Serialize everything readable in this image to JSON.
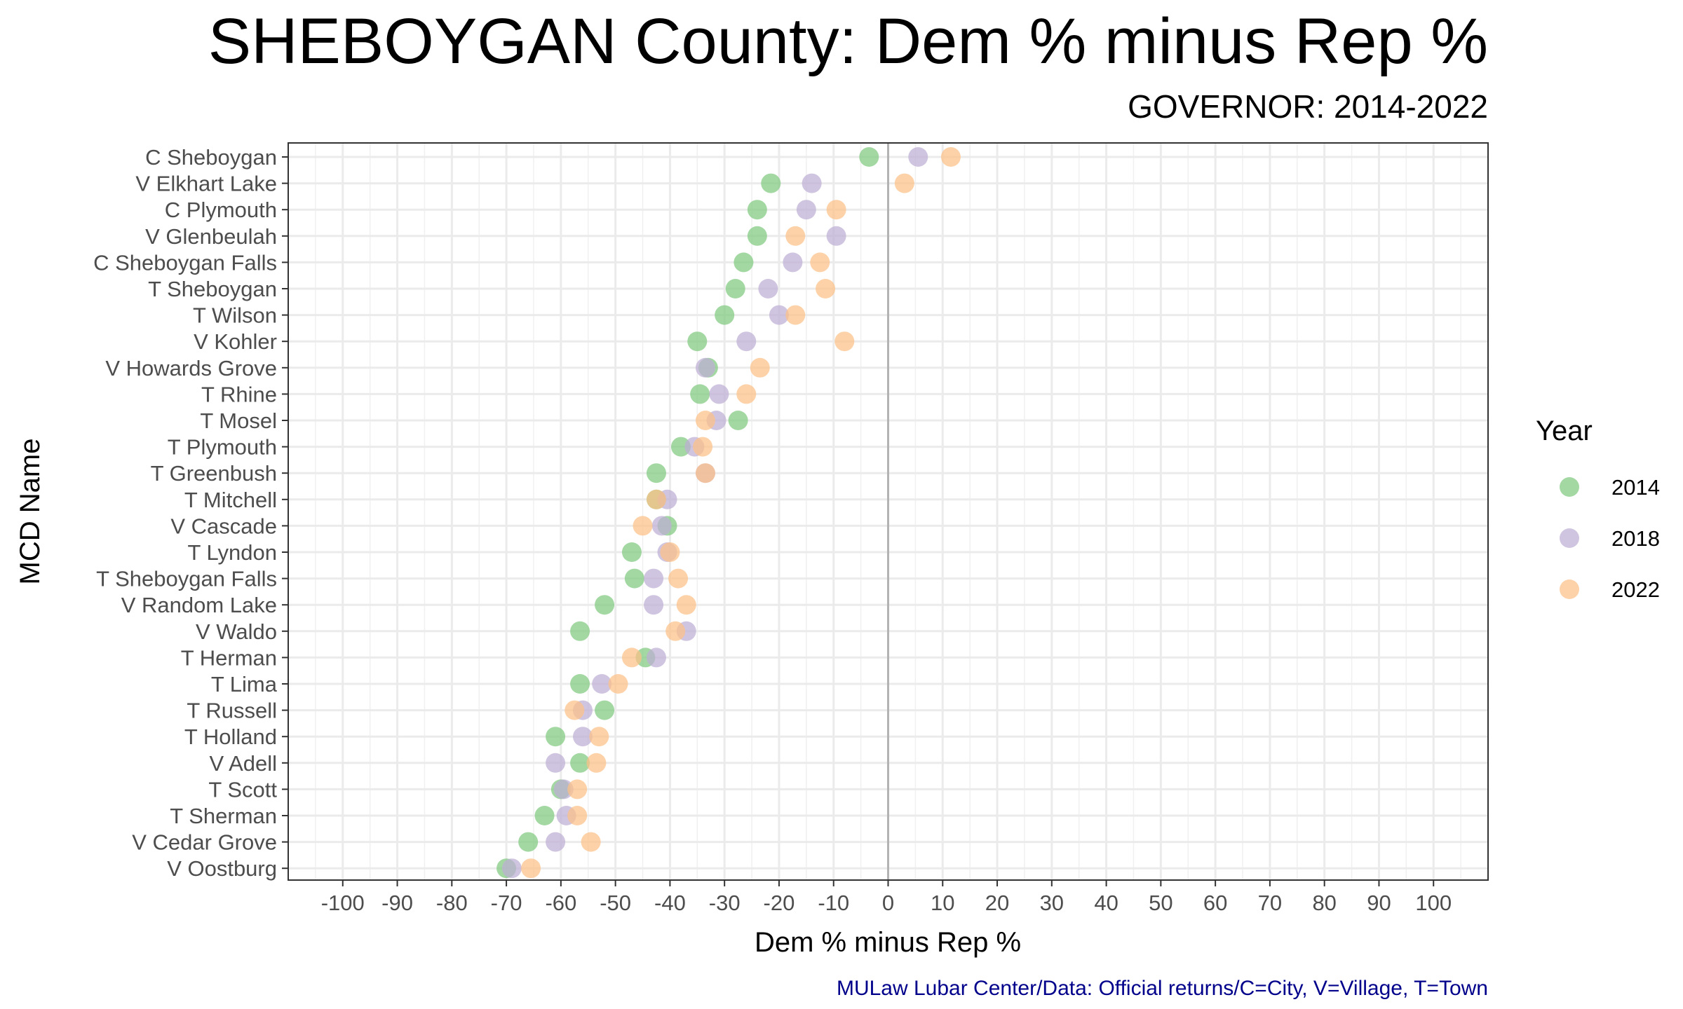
{
  "chart_data": {
    "type": "scatter",
    "title": "SHEBOYGAN County: Dem % minus Rep %",
    "subtitle": "GOVERNOR: 2014-2022",
    "xlabel": "Dem % minus Rep %",
    "ylabel": "MCD Name",
    "xlim": [
      -110,
      110
    ],
    "xticks": [
      -100,
      -90,
      -80,
      -70,
      -60,
      -50,
      -40,
      -30,
      -20,
      -10,
      0,
      10,
      20,
      30,
      40,
      50,
      60,
      70,
      80,
      90,
      100
    ],
    "grid": true,
    "reference_line_x": 0,
    "legend_title": "Year",
    "legend_position": "right",
    "caption": "MULaw Lubar Center/Data: Official returns/C=City, V=Village, T=Town",
    "caption_color": "#00008b",
    "categories": [
      "C Sheboygan",
      "V Elkhart Lake",
      "C Plymouth",
      "V Glenbeulah",
      "C Sheboygan Falls",
      "T Sheboygan",
      "T Wilson",
      "V Kohler",
      "V Howards Grove",
      "T Rhine",
      "T Mosel",
      "T Plymouth",
      "T Greenbush",
      "T Mitchell",
      "V Cascade",
      "T Lyndon",
      "T Sheboygan Falls",
      "V Random Lake",
      "V Waldo",
      "T Herman",
      "T Lima",
      "T Russell",
      "T Holland",
      "V Adell",
      "T Scott",
      "T Sherman",
      "V Cedar Grove",
      "V Oostburg"
    ],
    "series": [
      {
        "name": "2014",
        "color": "#7fc97f",
        "values": [
          -3.5,
          -21.5,
          -24,
          -24,
          -26.5,
          -28,
          -30,
          -35,
          -33,
          -34.5,
          -27.5,
          -38,
          -42.5,
          -42.5,
          -40.5,
          -47,
          -46.5,
          -52,
          -56.5,
          -44.5,
          -56.5,
          -52,
          -61,
          -56.5,
          -60,
          -63,
          -66,
          -70
        ]
      },
      {
        "name": "2018",
        "color": "#beaed4",
        "values": [
          5.5,
          -14,
          -15,
          -9.5,
          -17.5,
          -22,
          -20,
          -26,
          -33.5,
          -31,
          -31.5,
          -35.5,
          -33.5,
          -40.5,
          -41.5,
          -40.5,
          -43,
          -43,
          -37,
          -42.5,
          -52.5,
          -56,
          -56,
          -61,
          -59.5,
          -59,
          -61,
          -69
        ]
      },
      {
        "name": "2022",
        "color": "#fdc086",
        "values": [
          11.5,
          3,
          -9.5,
          -17,
          -12.5,
          -11.5,
          -17,
          -8,
          -23.5,
          -26,
          -33.5,
          -34,
          -33.5,
          -42.5,
          -45,
          -40,
          -38.5,
          -37,
          -39,
          -47,
          -49.5,
          -57.5,
          -53,
          -53.5,
          -57,
          -57,
          -54.5,
          -65.5
        ]
      }
    ]
  }
}
